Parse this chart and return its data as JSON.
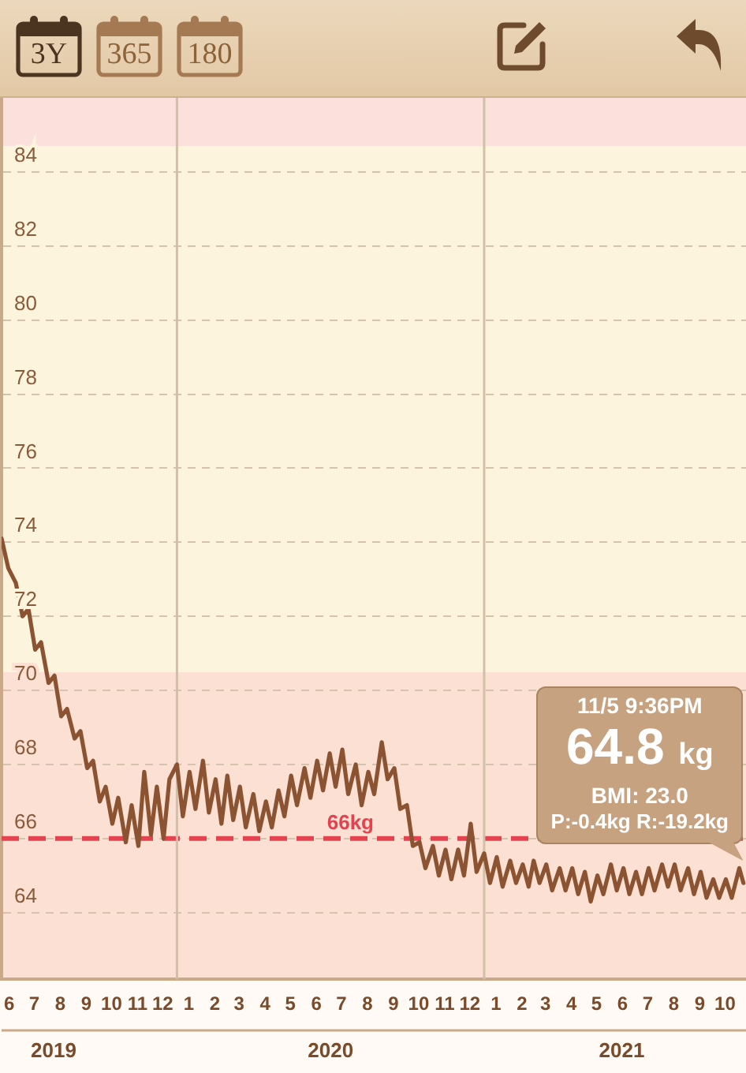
{
  "chart_data": {
    "type": "line",
    "x": [
      "2019-06-06",
      "2019-06-14",
      "2019-06-23",
      "2019-07-01",
      "2019-07-08",
      "2019-07-16",
      "2019-07-23",
      "2019-08-01",
      "2019-08-08",
      "2019-08-16",
      "2019-08-23",
      "2019-09-01",
      "2019-09-08",
      "2019-09-16",
      "2019-09-23",
      "2019-10-01",
      "2019-10-08",
      "2019-10-16",
      "2019-10-23",
      "2019-11-01",
      "2019-11-08",
      "2019-11-16",
      "2019-11-23",
      "2019-12-01",
      "2019-12-08",
      "2019-12-16",
      "2019-12-23",
      "2020-01-01",
      "2020-01-08",
      "2020-01-16",
      "2020-01-23",
      "2020-02-01",
      "2020-02-08",
      "2020-02-16",
      "2020-02-23",
      "2020-03-01",
      "2020-03-08",
      "2020-03-16",
      "2020-03-23",
      "2020-04-01",
      "2020-04-08",
      "2020-04-16",
      "2020-04-23",
      "2020-05-01",
      "2020-05-08",
      "2020-05-16",
      "2020-05-23",
      "2020-06-01",
      "2020-06-08",
      "2020-06-16",
      "2020-06-23",
      "2020-07-01",
      "2020-07-08",
      "2020-07-16",
      "2020-07-23",
      "2020-08-01",
      "2020-08-08",
      "2020-08-16",
      "2020-08-23",
      "2020-09-01",
      "2020-09-08",
      "2020-09-16",
      "2020-09-23",
      "2020-10-01",
      "2020-10-08",
      "2020-10-16",
      "2020-10-23",
      "2020-11-01",
      "2020-11-08",
      "2020-11-16",
      "2020-11-23",
      "2020-12-01",
      "2020-12-08",
      "2020-12-16",
      "2020-12-23",
      "2021-01-01",
      "2021-01-08",
      "2021-01-16",
      "2021-01-23",
      "2021-02-01",
      "2021-02-08",
      "2021-02-16",
      "2021-02-23",
      "2021-03-01",
      "2021-03-08",
      "2021-03-16",
      "2021-03-23",
      "2021-04-01",
      "2021-04-08",
      "2021-04-16",
      "2021-04-23",
      "2021-05-01",
      "2021-05-08",
      "2021-05-16",
      "2021-05-23",
      "2021-06-01",
      "2021-06-08",
      "2021-06-16",
      "2021-06-23",
      "2021-07-01",
      "2021-07-08",
      "2021-07-16",
      "2021-07-23",
      "2021-08-01",
      "2021-08-08",
      "2021-08-16",
      "2021-08-23",
      "2021-09-01",
      "2021-09-08",
      "2021-09-16",
      "2021-09-23",
      "2021-10-01",
      "2021-10-08",
      "2021-10-16",
      "2021-10-23",
      "2021-11-01",
      "2021-11-05T21:36"
    ],
    "values": [
      74.1,
      73.3,
      72.9,
      72.0,
      72.2,
      71.1,
      71.3,
      70.2,
      70.4,
      69.3,
      69.5,
      68.7,
      68.9,
      67.9,
      68.1,
      67.0,
      67.4,
      66.4,
      67.1,
      65.9,
      66.9,
      65.8,
      67.8,
      66.1,
      67.4,
      66.0,
      67.6,
      68.0,
      66.6,
      67.8,
      66.8,
      68.1,
      66.7,
      67.6,
      66.4,
      67.7,
      66.5,
      67.4,
      66.3,
      67.2,
      66.2,
      67.0,
      66.3,
      67.3,
      66.6,
      67.7,
      66.9,
      67.9,
      67.1,
      68.1,
      67.3,
      68.3,
      67.4,
      68.4,
      67.2,
      68.0,
      66.9,
      67.8,
      67.2,
      68.6,
      67.6,
      67.9,
      66.8,
      66.9,
      65.8,
      65.9,
      65.2,
      65.8,
      65.0,
      65.7,
      64.9,
      65.7,
      65.0,
      66.4,
      65.1,
      65.6,
      64.8,
      65.5,
      64.7,
      65.4,
      64.8,
      65.3,
      64.7,
      65.4,
      64.8,
      65.3,
      64.6,
      65.2,
      64.6,
      65.2,
      64.5,
      65.1,
      64.3,
      65.0,
      64.5,
      65.3,
      64.6,
      65.2,
      64.5,
      65.1,
      64.5,
      65.2,
      64.6,
      65.3,
      64.7,
      65.3,
      64.6,
      65.2,
      64.5,
      65.1,
      64.4,
      64.9,
      64.4,
      64.9,
      64.4,
      65.2,
      64.8
    ],
    "color": "#8b5331",
    "xlim": [
      "2019-06-06",
      "2021-11-09"
    ],
    "xticks": [
      {
        "value": "2019-06-15",
        "label": "6"
      },
      {
        "value": "2019-07-15",
        "label": "7"
      },
      {
        "value": "2019-08-15",
        "label": "8"
      },
      {
        "value": "2019-09-15",
        "label": "9"
      },
      {
        "value": "2019-10-15",
        "label": "10"
      },
      {
        "value": "2019-11-15",
        "label": "11"
      },
      {
        "value": "2019-12-15",
        "label": "12"
      },
      {
        "value": "2020-01-15",
        "label": "1"
      },
      {
        "value": "2020-02-15",
        "label": "2"
      },
      {
        "value": "2020-03-15",
        "label": "3"
      },
      {
        "value": "2020-04-15",
        "label": "4"
      },
      {
        "value": "2020-05-15",
        "label": "5"
      },
      {
        "value": "2020-06-15",
        "label": "6"
      },
      {
        "value": "2020-07-15",
        "label": "7"
      },
      {
        "value": "2020-08-15",
        "label": "8"
      },
      {
        "value": "2020-09-15",
        "label": "9"
      },
      {
        "value": "2020-10-15",
        "label": "10"
      },
      {
        "value": "2020-11-15",
        "label": "11"
      },
      {
        "value": "2020-12-15",
        "label": "12"
      },
      {
        "value": "2021-01-15",
        "label": "1"
      },
      {
        "value": "2021-02-15",
        "label": "2"
      },
      {
        "value": "2021-03-15",
        "label": "3"
      },
      {
        "value": "2021-04-15",
        "label": "4"
      },
      {
        "value": "2021-05-15",
        "label": "5"
      },
      {
        "value": "2021-06-15",
        "label": "6"
      },
      {
        "value": "2021-07-15",
        "label": "7"
      },
      {
        "value": "2021-08-15",
        "label": "8"
      },
      {
        "value": "2021-09-15",
        "label": "9"
      },
      {
        "value": "2021-10-15",
        "label": "10"
      }
    ],
    "x2lim": [
      "2019-06-06",
      "2021-11-09"
    ],
    "x2ticks": [
      {
        "value": "2019-08-07",
        "label": "2019"
      },
      {
        "value": "2020-07-02",
        "label": "2020"
      },
      {
        "value": "2021-06-14",
        "label": "2021"
      }
    ],
    "ylim": [
      62.2,
      86
    ],
    "yticks": [
      64,
      66,
      68,
      70,
      72,
      74,
      76,
      78,
      80,
      82,
      84
    ],
    "grid": "y",
    "bands": [
      {
        "axis": "y",
        "from": 62.2,
        "to": 70.5,
        "color": "#fbe0d3"
      },
      {
        "axis": "y",
        "from": 70.5,
        "to": 84.7,
        "color": "#fdf4de"
      },
      {
        "axis": "y",
        "from": 84.7,
        "to": 86,
        "color": "#fbe0db"
      }
    ],
    "ref_lines": [
      {
        "axis": "y",
        "value": 66,
        "label": "66kg",
        "color": "#e2434f",
        "line_style": "dashed"
      },
      {
        "axis": "x",
        "value": "2020-01-01",
        "color": "#d2bfa8",
        "line_style": "solid"
      },
      {
        "axis": "x",
        "value": "2021-01-01",
        "color": "#d2bfa8",
        "line_style": "solid"
      }
    ],
    "annotations": [
      "11/5 9:36PM",
      {
        "text": "64.8 kg",
        "x": "2021-11-05T21:36",
        "y": 64.8
      },
      "BMI: 23.0",
      "P:-0.4kg R:-19.2kg",
      "3Y",
      "365",
      "180"
    ]
  }
}
